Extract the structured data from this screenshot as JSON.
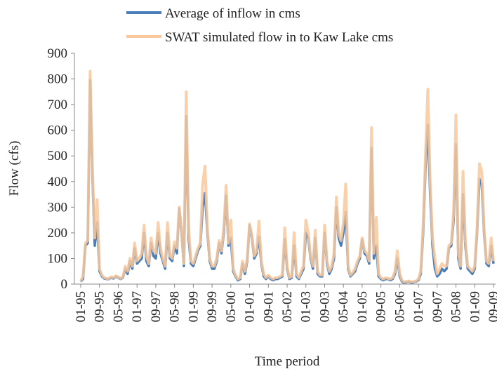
{
  "chart_data": {
    "type": "line",
    "x_label": "Time period",
    "y_label": "Flow (cfs)",
    "categories": [
      "01-95",
      null,
      null,
      null,
      null,
      null,
      null,
      null,
      "09-95",
      null,
      null,
      null,
      null,
      null,
      null,
      null,
      "05-96",
      null,
      null,
      null,
      null,
      null,
      null,
      null,
      "01-97",
      null,
      null,
      null,
      null,
      null,
      null,
      null,
      "09-97",
      null,
      null,
      null,
      null,
      null,
      null,
      null,
      "05-98",
      null,
      null,
      null,
      null,
      null,
      null,
      null,
      "01-99",
      null,
      null,
      null,
      null,
      null,
      null,
      null,
      "09-99",
      null,
      null,
      null,
      null,
      null,
      null,
      null,
      "05-00",
      null,
      null,
      null,
      null,
      null,
      null,
      null,
      "01-01",
      null,
      null,
      null,
      null,
      null,
      null,
      null,
      "09-01",
      null,
      null,
      null,
      null,
      null,
      null,
      null,
      "05-02",
      null,
      null,
      null,
      null,
      null,
      null,
      null,
      "01-03",
      null,
      null,
      null,
      null,
      null,
      null,
      null,
      "09-03",
      null,
      null,
      null,
      null,
      null,
      null,
      null,
      "05-04",
      null,
      null,
      null,
      null,
      null,
      null,
      null,
      "01-05",
      null,
      null,
      null,
      null,
      null,
      null,
      null,
      "09-05",
      null,
      null,
      null,
      null,
      null,
      null,
      null,
      "05-06",
      null,
      null,
      null,
      null,
      null,
      null,
      null,
      "01-07",
      null,
      null,
      null,
      null,
      null,
      null,
      null,
      "09-07",
      null,
      null,
      null,
      null,
      null,
      null,
      null,
      "05-08",
      null,
      null,
      null,
      null,
      null,
      null,
      null,
      "01-09",
      null,
      null,
      null,
      null,
      null,
      null,
      null,
      "09-09"
    ],
    "series": [
      {
        "name": "Average of inflow in cms",
        "color": "#4a7ebb",
        "values": [
          10,
          20,
          150,
          160,
          795,
          420,
          150,
          240,
          50,
          30,
          22,
          20,
          20,
          25,
          22,
          30,
          25,
          20,
          25,
          60,
          40,
          90,
          60,
          140,
          80,
          90,
          100,
          200,
          90,
          70,
          160,
          110,
          100,
          200,
          120,
          90,
          60,
          200,
          100,
          90,
          150,
          120,
          295,
          200,
          70,
          655,
          180,
          80,
          70,
          100,
          130,
          150,
          300,
          355,
          200,
          90,
          60,
          60,
          90,
          160,
          120,
          200,
          345,
          150,
          180,
          50,
          30,
          15,
          20,
          80,
          40,
          90,
          230,
          180,
          100,
          120,
          185,
          80,
          30,
          20,
          30,
          20,
          15,
          20,
          20,
          25,
          30,
          175,
          60,
          20,
          25,
          150,
          30,
          20,
          40,
          60,
          200,
          180,
          100,
          60,
          180,
          40,
          30,
          30,
          200,
          80,
          40,
          60,
          100,
          300,
          180,
          150,
          200,
          280,
          60,
          30,
          40,
          50,
          80,
          100,
          175,
          120,
          110,
          80,
          530,
          100,
          150,
          30,
          20,
          15,
          20,
          20,
          15,
          20,
          40,
          100,
          30,
          10,
          5,
          8,
          10,
          5,
          8,
          10,
          15,
          40,
          200,
          450,
          620,
          350,
          150,
          60,
          30,
          40,
          60,
          50,
          60,
          140,
          150,
          250,
          545,
          100,
          60,
          350,
          150,
          60,
          50,
          40,
          60,
          200,
          410,
          390,
          200,
          80,
          70,
          150,
          80
        ]
      },
      {
        "name": "SWAT simulated flow in to Kaw Lake cms",
        "color": "#f9c89b",
        "values": [
          12,
          30,
          160,
          170,
          830,
          450,
          180,
          330,
          60,
          35,
          25,
          22,
          22,
          28,
          25,
          32,
          28,
          22,
          28,
          70,
          50,
          100,
          70,
          160,
          90,
          100,
          120,
          230,
          110,
          80,
          180,
          130,
          120,
          240,
          140,
          100,
          70,
          240,
          110,
          100,
          165,
          140,
          300,
          210,
          80,
          750,
          220,
          90,
          80,
          110,
          140,
          160,
          390,
          460,
          220,
          100,
          70,
          70,
          100,
          170,
          130,
          220,
          385,
          160,
          250,
          60,
          35,
          20,
          25,
          90,
          50,
          100,
          235,
          190,
          110,
          130,
          245,
          90,
          40,
          25,
          35,
          25,
          20,
          25,
          25,
          30,
          35,
          220,
          70,
          25,
          30,
          200,
          40,
          25,
          50,
          70,
          250,
          200,
          110,
          70,
          210,
          50,
          35,
          35,
          230,
          90,
          50,
          70,
          120,
          340,
          200,
          170,
          240,
          390,
          70,
          35,
          45,
          60,
          90,
          110,
          180,
          130,
          120,
          90,
          610,
          120,
          260,
          40,
          25,
          20,
          25,
          22,
          20,
          25,
          50,
          130,
          40,
          15,
          8,
          10,
          12,
          8,
          10,
          12,
          20,
          50,
          230,
          500,
          760,
          400,
          180,
          100,
          40,
          60,
          80,
          70,
          70,
          150,
          160,
          280,
          660,
          120,
          70,
          440,
          170,
          70,
          60,
          50,
          70,
          220,
          470,
          440,
          220,
          90,
          80,
          180,
          90
        ]
      }
    ],
    "ylim": [
      0,
      900
    ],
    "yticks": [
      0,
      100,
      200,
      300,
      400,
      500,
      600,
      700,
      800,
      900
    ],
    "grid": false
  }
}
